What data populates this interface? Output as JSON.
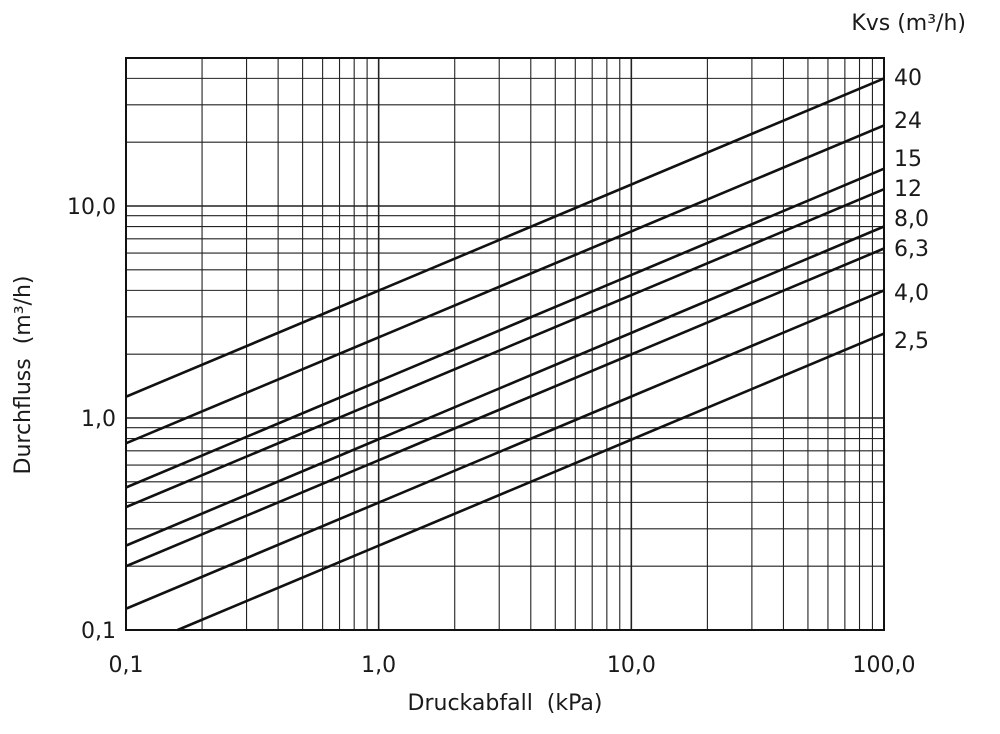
{
  "chart_data": {
    "type": "line",
    "x_scale": "log",
    "y_scale": "log",
    "xlim": [
      0.1,
      100
    ],
    "ylim": [
      0.1,
      50
    ],
    "grid": true,
    "xlabel": "Druckabfall  (kPa)",
    "ylabel": "Durchfluss  (m³/h)",
    "legend_title": "Kvs (m³/h)",
    "x_ticks": [
      {
        "value": 0.1,
        "label": "0,1"
      },
      {
        "value": 1,
        "label": "1,0"
      },
      {
        "value": 10,
        "label": "10,0"
      },
      {
        "value": 100,
        "label": "100,0"
      }
    ],
    "y_ticks": [
      {
        "value": 0.1,
        "label": "0,1"
      },
      {
        "value": 1,
        "label": "1,0"
      },
      {
        "value": 10,
        "label": "10,0"
      }
    ],
    "series": [
      {
        "name": "40",
        "kvs": 40,
        "x": [
          0.1,
          100
        ],
        "y": [
          1.26,
          40
        ]
      },
      {
        "name": "24",
        "kvs": 24,
        "x": [
          0.1,
          100
        ],
        "y": [
          0.76,
          24
        ]
      },
      {
        "name": "15",
        "kvs": 15,
        "x": [
          0.1,
          100
        ],
        "y": [
          0.47,
          15
        ]
      },
      {
        "name": "12",
        "kvs": 12,
        "x": [
          0.1,
          100
        ],
        "y": [
          0.38,
          12
        ]
      },
      {
        "name": "8,0",
        "kvs": 8.0,
        "x": [
          0.1,
          100
        ],
        "y": [
          0.25,
          8.0
        ]
      },
      {
        "name": "6,3",
        "kvs": 6.3,
        "x": [
          0.1,
          100
        ],
        "y": [
          0.2,
          6.3
        ]
      },
      {
        "name": "4,0",
        "kvs": 4.0,
        "x": [
          0.1,
          100
        ],
        "y": [
          0.126,
          4.0
        ]
      },
      {
        "name": "2,5",
        "kvs": 2.5,
        "x": [
          0.16,
          100
        ],
        "y": [
          0.1,
          2.5
        ]
      }
    ]
  }
}
